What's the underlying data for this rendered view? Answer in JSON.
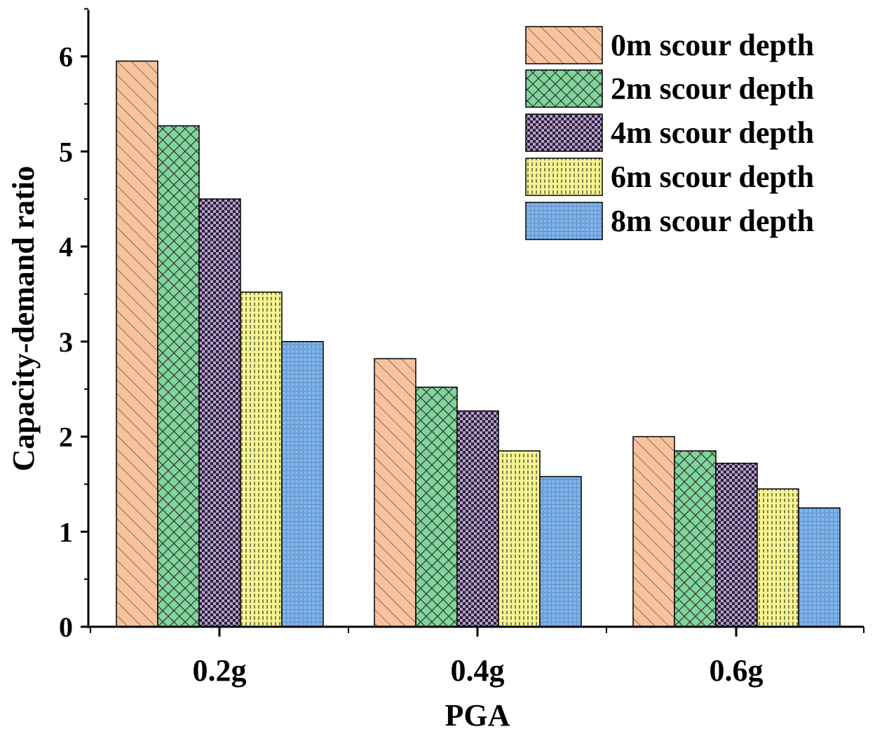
{
  "chart_data": {
    "type": "bar",
    "title": "",
    "xlabel": "PGA",
    "ylabel": "Capacity-demand ratio",
    "categories": [
      "0.2g",
      "0.4g",
      "0.6g"
    ],
    "ylim": [
      0,
      6.5
    ],
    "yticks": [
      "0",
      "1",
      "2",
      "3",
      "4",
      "5",
      "6"
    ],
    "legend_position": "top-right",
    "grid": false,
    "series": [
      {
        "name": "0m scour depth",
        "values": [
          5.95,
          2.82,
          2.0
        ],
        "color": "#f8c39c",
        "pattern": "diagonal-hatch"
      },
      {
        "name": "2m scour depth",
        "values": [
          5.27,
          2.52,
          1.85
        ],
        "color": "#7fd59a",
        "pattern": "crosshatch"
      },
      {
        "name": "4m scour depth",
        "values": [
          4.5,
          2.27,
          1.72
        ],
        "color": "#b89ed0",
        "pattern": "checkerboard"
      },
      {
        "name": "6m scour depth",
        "values": [
          3.52,
          1.85,
          1.45
        ],
        "color": "#f7f58f",
        "pattern": "vertical-dash"
      },
      {
        "name": "8m scour depth",
        "values": [
          3.0,
          1.58,
          1.25
        ],
        "color": "#7fb4ec",
        "pattern": "dotted-grid"
      }
    ]
  }
}
